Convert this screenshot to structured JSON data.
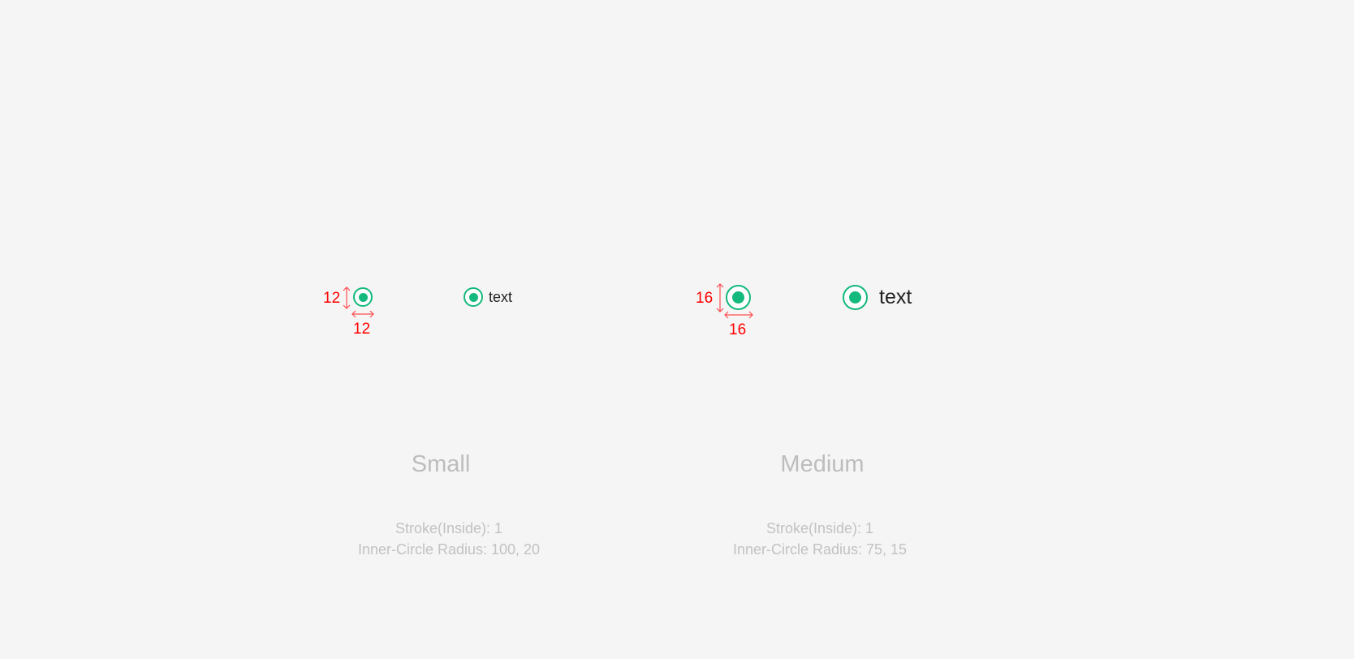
{
  "accent_color": "#14b97d",
  "annotation_color": "#ff0000",
  "small": {
    "title": "Small",
    "height_label": "12",
    "width_label": "12",
    "radio_label": "text",
    "stroke": "Stroke(Inside): 1",
    "inner_radius": "Inner-Circle Radius: 100, 20",
    "selected": true
  },
  "medium": {
    "title": "Medium",
    "height_label": "16",
    "width_label": "16",
    "radio_label": "text",
    "stroke": "Stroke(Inside): 1",
    "inner_radius": "Inner-Circle Radius: 75, 15",
    "selected": true
  }
}
